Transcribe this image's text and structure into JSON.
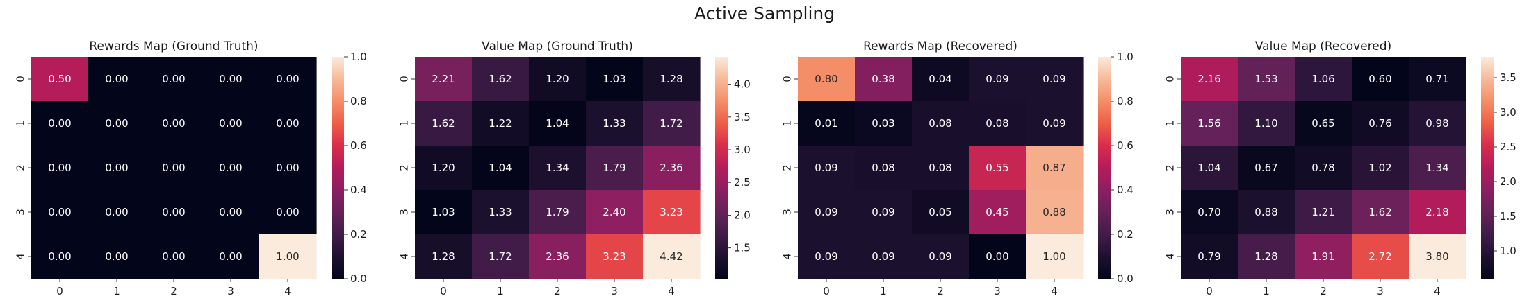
{
  "figure_title": "Active Sampling",
  "chart_data": [
    {
      "type": "heatmap",
      "title": "Rewards Map (Ground Truth)",
      "xticks": [
        "0",
        "1",
        "2",
        "3",
        "4"
      ],
      "yticks": [
        "0",
        "1",
        "2",
        "3",
        "4"
      ],
      "values": [
        [
          0.5,
          0.0,
          0.0,
          0.0,
          0.0
        ],
        [
          0.0,
          0.0,
          0.0,
          0.0,
          0.0
        ],
        [
          0.0,
          0.0,
          0.0,
          0.0,
          0.0
        ],
        [
          0.0,
          0.0,
          0.0,
          0.0,
          0.0
        ],
        [
          0.0,
          0.0,
          0.0,
          0.0,
          1.0
        ]
      ],
      "vmin": 0.0,
      "vmax": 1.0,
      "colorbar_ticks": [
        "0.0",
        "0.2",
        "0.4",
        "0.6",
        "0.8",
        "1.0"
      ],
      "colormap": "rocket"
    },
    {
      "type": "heatmap",
      "title": "Value Map (Ground Truth)",
      "xticks": [
        "0",
        "1",
        "2",
        "3",
        "4"
      ],
      "yticks": [
        "0",
        "1",
        "2",
        "3",
        "4"
      ],
      "values": [
        [
          2.21,
          1.62,
          1.2,
          1.03,
          1.28
        ],
        [
          1.62,
          1.22,
          1.04,
          1.33,
          1.72
        ],
        [
          1.2,
          1.04,
          1.34,
          1.79,
          2.36
        ],
        [
          1.03,
          1.33,
          1.79,
          2.4,
          3.23
        ],
        [
          1.28,
          1.72,
          2.36,
          3.23,
          4.42
        ]
      ],
      "vmin": 1.03,
      "vmax": 4.42,
      "colorbar_ticks": [
        "1.5",
        "2.0",
        "2.5",
        "3.0",
        "3.5",
        "4.0"
      ],
      "colormap": "rocket"
    },
    {
      "type": "heatmap",
      "title": "Rewards Map (Recovered)",
      "xticks": [
        "0",
        "1",
        "2",
        "3",
        "4"
      ],
      "yticks": [
        "0",
        "1",
        "2",
        "3",
        "4"
      ],
      "values": [
        [
          0.8,
          0.38,
          0.04,
          0.09,
          0.09
        ],
        [
          0.01,
          0.03,
          0.08,
          0.08,
          0.09
        ],
        [
          0.09,
          0.08,
          0.08,
          0.55,
          0.87
        ],
        [
          0.09,
          0.09,
          0.05,
          0.45,
          0.88
        ],
        [
          0.09,
          0.09,
          0.09,
          0.0,
          1.0
        ]
      ],
      "vmin": 0.0,
      "vmax": 1.0,
      "colorbar_ticks": [
        "0.0",
        "0.2",
        "0.4",
        "0.6",
        "0.8",
        "1.0"
      ],
      "colormap": "rocket"
    },
    {
      "type": "heatmap",
      "title": "Value Map (Recovered)",
      "xticks": [
        "0",
        "1",
        "2",
        "3",
        "4"
      ],
      "yticks": [
        "0",
        "1",
        "2",
        "3",
        "4"
      ],
      "values": [
        [
          2.16,
          1.53,
          1.06,
          0.6,
          0.71
        ],
        [
          1.56,
          1.1,
          0.65,
          0.76,
          0.98
        ],
        [
          1.04,
          0.67,
          0.78,
          1.02,
          1.34
        ],
        [
          0.7,
          0.88,
          1.21,
          1.62,
          2.18
        ],
        [
          0.79,
          1.28,
          1.91,
          2.72,
          3.8
        ]
      ],
      "vmin": 0.6,
      "vmax": 3.8,
      "colorbar_ticks": [
        "1.0",
        "1.5",
        "2.0",
        "2.5",
        "3.0",
        "3.5"
      ],
      "colormap": "rocket"
    }
  ]
}
